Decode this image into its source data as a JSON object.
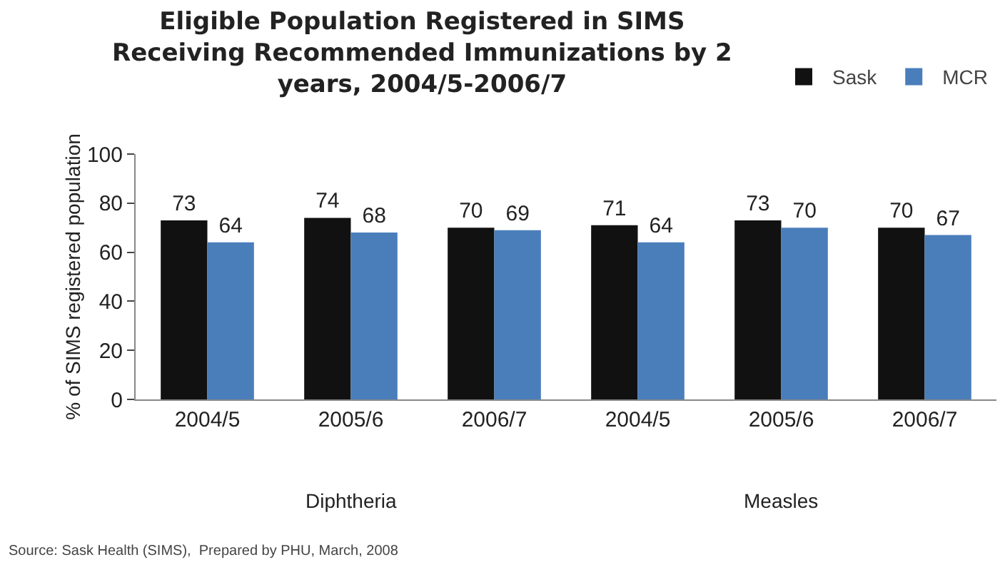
{
  "chart_data": {
    "type": "bar",
    "title": "Eligible Population Registered in SIMS\nReceiving Recommended Immunizations by 2\nyears, 2004/5-2006/7",
    "ylabel": "% of SIMS registered population",
    "categories": [
      "2004/5",
      "2005/6",
      "2006/7",
      "2004/5 ",
      "2005/6 ",
      "2006/7 "
    ],
    "series": [
      {
        "name": "Sask",
        "color": "#111111",
        "values": [
          73,
          74,
          70,
          71,
          73,
          70
        ]
      },
      {
        "name": "MCR",
        "color": "#4a7ebb",
        "values": [
          64,
          68,
          69,
          64,
          70,
          67
        ]
      }
    ],
    "ylim": [
      0,
      100
    ],
    "yticks": [
      0,
      20,
      40,
      60,
      80,
      100
    ],
    "grid": false,
    "legend": "top right",
    "data_labels": true,
    "annotations": [
      "Diphtheria",
      "Measles",
      "Source: Sask Health (SIMS),  Prepared by PHU, March, 2008"
    ]
  }
}
